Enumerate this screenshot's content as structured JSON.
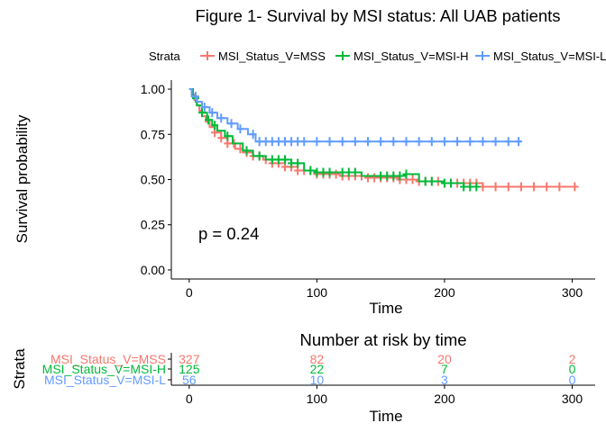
{
  "chart_data": [
    {
      "type": "line",
      "subtype": "kaplan-meier",
      "title": "Figure 1- Survival by MSI status: All UAB patients",
      "xlabel": "Time",
      "ylabel": "Survival probability",
      "xlim": [
        -14,
        318
      ],
      "ylim": [
        -0.05,
        1.05
      ],
      "x_ticks": [
        0,
        100,
        200,
        300
      ],
      "y_ticks": [
        0.0,
        0.25,
        0.5,
        0.75,
        1.0
      ],
      "y_tick_labels": [
        "0.00",
        "0.25",
        "0.50",
        "0.75",
        "1.00"
      ],
      "grid": false,
      "legend_title": "Strata",
      "legend_position": "top",
      "annotation": "p = 0.24",
      "series": [
        {
          "name": "MSI_Status_V=MSS",
          "color": "#F8766D",
          "steps": [
            [
              0,
              1.0
            ],
            [
              2,
              0.97
            ],
            [
              4,
              0.94
            ],
            [
              6,
              0.91
            ],
            [
              8,
              0.88
            ],
            [
              10,
              0.85
            ],
            [
              13,
              0.82
            ],
            [
              16,
              0.79
            ],
            [
              20,
              0.76
            ],
            [
              25,
              0.73
            ],
            [
              30,
              0.7
            ],
            [
              36,
              0.67
            ],
            [
              42,
              0.65
            ],
            [
              50,
              0.63
            ],
            [
              58,
              0.61
            ],
            [
              65,
              0.59
            ],
            [
              75,
              0.57
            ],
            [
              85,
              0.55
            ],
            [
              100,
              0.53
            ],
            [
              118,
              0.52
            ],
            [
              140,
              0.51
            ],
            [
              165,
              0.5
            ],
            [
              180,
              0.49
            ],
            [
              200,
              0.48
            ],
            [
              230,
              0.46
            ],
            [
              305,
              0.46
            ]
          ],
          "censor_times": [
            20,
            25,
            30,
            35,
            40,
            45,
            50,
            55,
            60,
            65,
            70,
            75,
            80,
            85,
            90,
            95,
            100,
            105,
            110,
            115,
            120,
            125,
            130,
            135,
            140,
            145,
            150,
            155,
            160,
            165,
            170,
            175,
            180,
            185,
            190,
            195,
            200,
            205,
            210,
            215,
            220,
            225,
            230,
            240,
            250,
            260,
            270,
            280,
            290,
            302
          ]
        },
        {
          "name": "MSI_Status_V=MSI-H",
          "color": "#00BA38",
          "steps": [
            [
              0,
              1.0
            ],
            [
              3,
              0.95
            ],
            [
              6,
              0.91
            ],
            [
              10,
              0.87
            ],
            [
              14,
              0.83
            ],
            [
              18,
              0.8
            ],
            [
              22,
              0.77
            ],
            [
              28,
              0.74
            ],
            [
              34,
              0.7
            ],
            [
              42,
              0.66
            ],
            [
              50,
              0.63
            ],
            [
              60,
              0.61
            ],
            [
              80,
              0.59
            ],
            [
              90,
              0.55
            ],
            [
              100,
              0.54
            ],
            [
              135,
              0.52
            ],
            [
              170,
              0.53
            ],
            [
              180,
              0.49
            ],
            [
              200,
              0.48
            ],
            [
              215,
              0.46
            ],
            [
              228,
              0.46
            ]
          ],
          "censor_times": [
            5,
            10,
            15,
            20,
            30,
            45,
            55,
            65,
            70,
            75,
            80,
            85,
            95,
            100,
            105,
            110,
            120,
            125,
            130,
            150,
            155,
            160,
            165,
            170,
            185,
            190,
            200,
            205,
            215,
            220,
            225
          ]
        },
        {
          "name": "MSI_Status_V=MSI-L",
          "color": "#619CFF",
          "steps": [
            [
              0,
              1.0
            ],
            [
              2,
              0.96
            ],
            [
              6,
              0.93
            ],
            [
              10,
              0.9
            ],
            [
              16,
              0.87
            ],
            [
              22,
              0.84
            ],
            [
              30,
              0.81
            ],
            [
              38,
              0.78
            ],
            [
              46,
              0.75
            ],
            [
              52,
              0.71
            ],
            [
              260,
              0.71
            ]
          ],
          "censor_times": [
            5,
            12,
            18,
            25,
            33,
            40,
            50,
            55,
            60,
            65,
            70,
            75,
            80,
            85,
            90,
            100,
            110,
            120,
            130,
            140,
            150,
            160,
            170,
            180,
            190,
            200,
            210,
            220,
            230,
            240,
            250,
            258
          ]
        }
      ]
    },
    {
      "type": "table",
      "title": "Number at risk by time",
      "xlabel": "Time",
      "ylabel": "Strata",
      "xlim": [
        -14,
        318
      ],
      "x_ticks": [
        0,
        100,
        200,
        300
      ],
      "rows": [
        {
          "name": "MSI_Status_V=MSS",
          "color": "#F8766D",
          "values": [
            327,
            82,
            20,
            2
          ]
        },
        {
          "name": "MSI_Status_V=MSI-H",
          "color": "#00BA38",
          "values": [
            125,
            22,
            7,
            0
          ]
        },
        {
          "name": "MSI_Status_V=MSI-L",
          "color": "#619CFF",
          "values": [
            56,
            10,
            3,
            0
          ]
        }
      ]
    }
  ]
}
